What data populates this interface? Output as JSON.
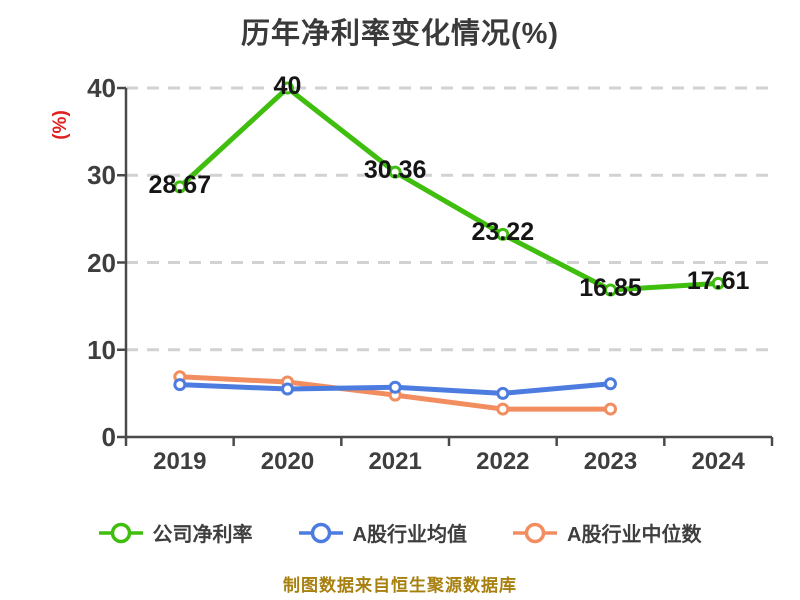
{
  "title": "历年净利率变化情况(%)",
  "caption": "制图数据来自恒生聚源数据库",
  "palette": {
    "title_color": "#3a3a3a",
    "axis_color": "#4a4a4a",
    "grid_color": "#d2d2d2",
    "tick_text_color": "#3e3e3e",
    "data_label_color": "#151515",
    "ylabel_color": "#e01f1f",
    "caption_color": "#a8800f",
    "marker_fill": "#ffffff"
  },
  "chart_data": {
    "type": "line",
    "title": "历年净利率变化情况(%)",
    "xlabel": "",
    "ylabel": "(%)",
    "categories": [
      "2019",
      "2020",
      "2021",
      "2022",
      "2023",
      "2024"
    ],
    "ylim": [
      0,
      40
    ],
    "yticks": [
      0,
      10,
      20,
      30,
      40
    ],
    "grid": "horizontal-dashed",
    "legend_position": "bottom",
    "series": [
      {
        "name": "公司净利率",
        "color": "#3fbe0e",
        "values": [
          28.67,
          40,
          30.36,
          23.22,
          16.85,
          17.61
        ],
        "data_labels": true
      },
      {
        "name": "A股行业均值",
        "color": "#4d7ce0",
        "values": [
          6.0,
          5.5,
          5.7,
          5.0,
          6.1,
          null
        ],
        "data_labels": false
      },
      {
        "name": "A股行业中位数",
        "color": "#f28d60",
        "values": [
          6.9,
          6.3,
          4.8,
          3.2,
          3.2,
          null
        ],
        "data_labels": false
      }
    ]
  }
}
